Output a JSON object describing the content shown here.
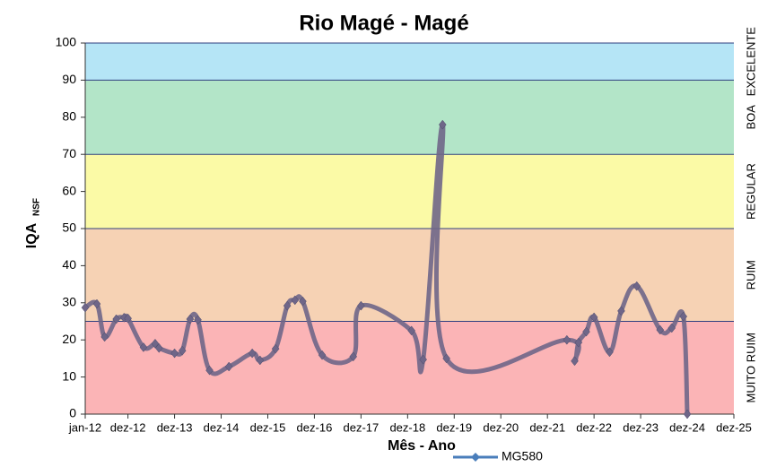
{
  "chart_data": {
    "type": "line",
    "title": "Rio Magé - Magé",
    "y_label": "IQA",
    "y_label_subscript": "NSF",
    "x_label": "Mês - Ano",
    "ylim": [
      0,
      100
    ],
    "yticks": [
      0,
      10,
      20,
      30,
      40,
      50,
      60,
      70,
      80,
      90,
      100
    ],
    "xlim": [
      "2012-01",
      "2025-12"
    ],
    "xticks": [
      {
        "value": "2012-01",
        "label": "jan-12"
      },
      {
        "value": "2012-12",
        "label": "dez-12"
      },
      {
        "value": "2013-12",
        "label": "dez-13"
      },
      {
        "value": "2014-12",
        "label": "dez-14"
      },
      {
        "value": "2015-12",
        "label": "dez-15"
      },
      {
        "value": "2016-12",
        "label": "dez-16"
      },
      {
        "value": "2017-12",
        "label": "dez-17"
      },
      {
        "value": "2018-12",
        "label": "dez-18"
      },
      {
        "value": "2019-12",
        "label": "dez-19"
      },
      {
        "value": "2020-12",
        "label": "dez-20"
      },
      {
        "value": "2021-12",
        "label": "dez-21"
      },
      {
        "value": "2022-12",
        "label": "dez-22"
      },
      {
        "value": "2023-12",
        "label": "dez-23"
      },
      {
        "value": "2024-12",
        "label": "dez-24"
      },
      {
        "value": "2025-12",
        "label": "dez-25"
      }
    ],
    "bands": [
      {
        "from": 0,
        "to": 25,
        "color": "#fbb4b6",
        "label": "MUITO RUIM"
      },
      {
        "from": 25,
        "to": 50,
        "color": "#f6d2b4",
        "label": "RUIM"
      },
      {
        "from": 50,
        "to": 70,
        "color": "#fbfaa6",
        "label": "REGULAR"
      },
      {
        "from": 70,
        "to": 90,
        "color": "#b3e5c8",
        "label": "BOA"
      },
      {
        "from": 90,
        "to": 100,
        "color": "#b5e5f6",
        "label": "EXCELENTE"
      }
    ],
    "x": [
      "2012-01",
      "2012-04",
      "2012-06",
      "2012-09",
      "2012-11",
      "2012-12",
      "2013-04",
      "2013-07",
      "2013-08",
      "2013-12",
      "2014-02",
      "2014-04",
      "2014-06",
      "2014-09",
      "2015-02",
      "2015-08",
      "2015-10",
      "2016-02",
      "2016-05",
      "2016-07",
      "2016-09",
      "2017-02",
      "2017-10",
      "2017-12",
      "2019-01",
      "2019-04",
      "2019-09",
      "2019-10",
      "2022-05",
      "2022-07",
      "2022-08",
      "2022-10",
      "2022-12",
      "2023-04",
      "2023-07",
      "2023-11",
      "2024-05",
      "2024-08",
      "2024-11",
      "2024-12"
    ],
    "series": [
      {
        "name": "MG580",
        "color": "#4a7ebb",
        "line_color": "#6f6688",
        "values": [
          28.7,
          29.7,
          20.8,
          25.6,
          26,
          25.8,
          18,
          19,
          17.8,
          16.4,
          17.1,
          25.6,
          25.4,
          11.8,
          12.8,
          16.4,
          14.5,
          17.6,
          29.2,
          30.7,
          30.4,
          15.9,
          15.5,
          29.2,
          22.5,
          14.7,
          78,
          15,
          20,
          14.3,
          19.3,
          22.2,
          26.1,
          16.7,
          27.8,
          34.5,
          22.7,
          23.2,
          26.3,
          0
        ]
      }
    ]
  }
}
